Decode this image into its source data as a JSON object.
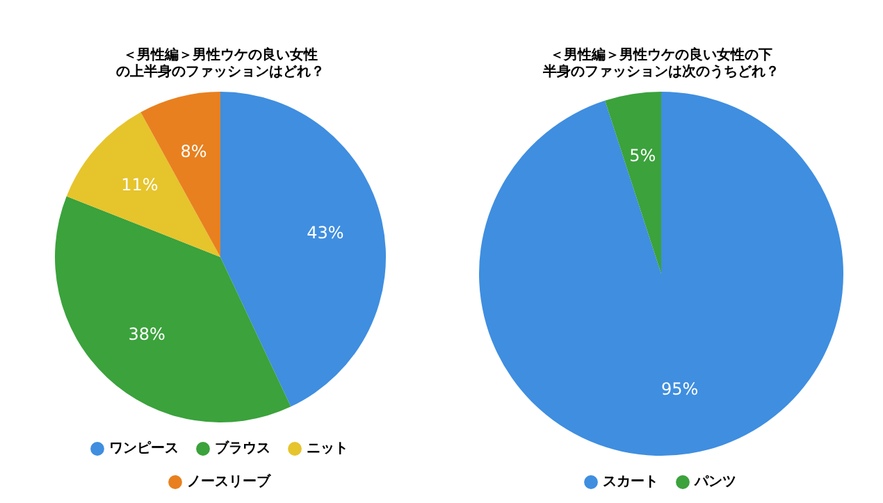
{
  "chart_data": [
    {
      "type": "pie",
      "title": "＜男性編＞男性ウケの良い女性の上半身のファッションはどれ？",
      "categories": [
        "ワンピース",
        "ブラウス",
        "ニット",
        "ノースリーブ"
      ],
      "values": [
        43,
        38,
        11,
        8
      ],
      "value_labels": [
        "43%",
        "38%",
        "11%",
        "8%"
      ],
      "colors": [
        "#3f8ee0",
        "#3ba23c",
        "#e6c42c",
        "#e8801f"
      ],
      "legend": "bottom"
    },
    {
      "type": "pie",
      "title": "＜男性編＞男性ウケの良い女性の下半身のファッションは次のうちどれ？",
      "categories": [
        "スカート",
        "パンツ"
      ],
      "values": [
        95,
        5
      ],
      "value_labels": [
        "95%",
        "5%"
      ],
      "colors": [
        "#3f8ee0",
        "#3ba23c"
      ],
      "legend": "bottom"
    }
  ]
}
